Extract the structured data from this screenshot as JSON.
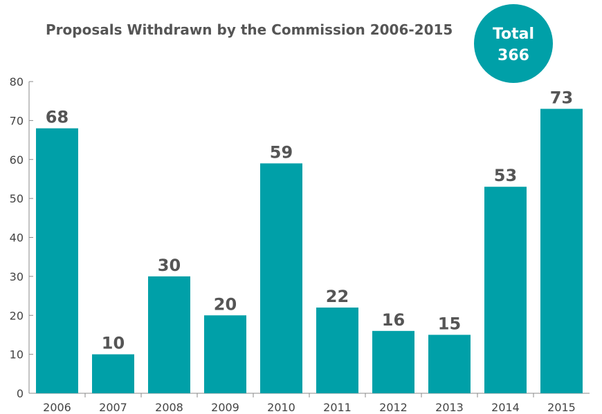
{
  "chart_data": {
    "type": "bar",
    "title": "Proposals Withdrawn by the Commission 2006-2015",
    "categories": [
      "2006",
      "2007",
      "2008",
      "2009",
      "2010",
      "2011",
      "2012",
      "2013",
      "2014",
      "2015"
    ],
    "values": [
      68,
      10,
      30,
      20,
      59,
      22,
      16,
      15,
      53,
      73
    ],
    "value_labels": [
      "68",
      "10",
      "30",
      "20",
      "59",
      "22",
      "16",
      "15",
      "53",
      "73"
    ],
    "yticks": [
      "0",
      "10",
      "20",
      "30",
      "40",
      "50",
      "60",
      "70",
      "80"
    ],
    "ylim": [
      0,
      80
    ],
    "xlabel": "",
    "ylabel": "",
    "grid": false,
    "bar_color": "#00A0A8"
  },
  "badge": {
    "line1": "Total",
    "line2": "366",
    "color": "#00A0A8"
  }
}
